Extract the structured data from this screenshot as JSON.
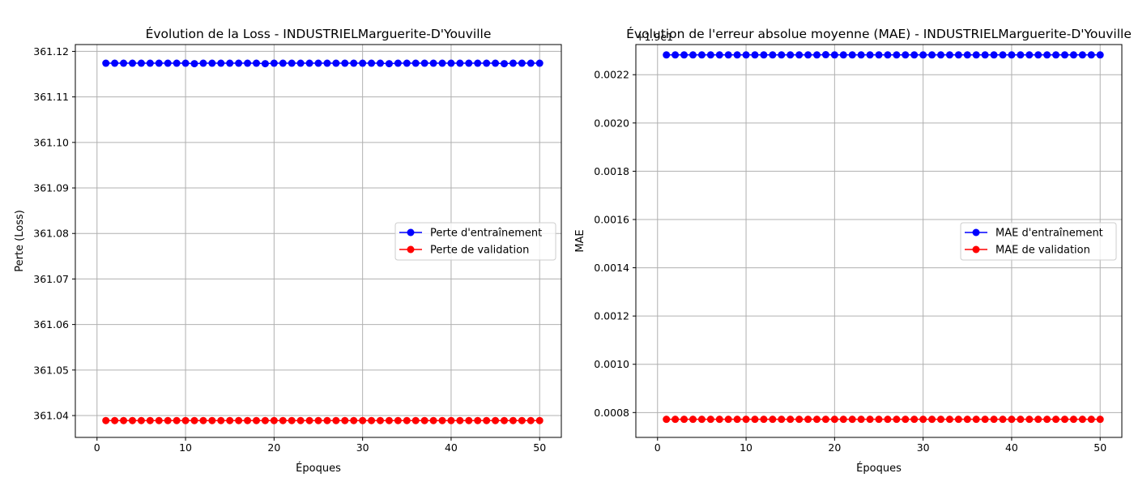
{
  "chart_data": [
    {
      "type": "line",
      "title": "Évolution de la Loss - INDUSTRIELMarguerite-D'Youville",
      "xlabel": "Époques",
      "ylabel": "Perte (Loss)",
      "xlim": [
        -2.45,
        52.45
      ],
      "ylim": [
        361.0352,
        361.1215
      ],
      "x_ticks": [
        0,
        10,
        20,
        30,
        40,
        50
      ],
      "x_tick_labels": [
        "0",
        "10",
        "20",
        "30",
        "40",
        "50"
      ],
      "y_ticks": [
        361.04,
        361.05,
        361.06,
        361.07,
        361.08,
        361.09,
        361.1,
        361.11,
        361.12
      ],
      "y_tick_labels": [
        "361.04",
        "361.05",
        "361.06",
        "361.07",
        "361.08",
        "361.09",
        "361.10",
        "361.11",
        "361.12"
      ],
      "offset_text": "",
      "grid": true,
      "legend_position": "center-right",
      "x": [
        1,
        2,
        3,
        4,
        5,
        6,
        7,
        8,
        9,
        10,
        11,
        12,
        13,
        14,
        15,
        16,
        17,
        18,
        19,
        20,
        21,
        22,
        23,
        24,
        25,
        26,
        27,
        28,
        29,
        30,
        31,
        32,
        33,
        34,
        35,
        36,
        37,
        38,
        39,
        40,
        41,
        42,
        43,
        44,
        45,
        46,
        47,
        48,
        49,
        50
      ],
      "series": [
        {
          "name": "Perte d'entraînement",
          "color": "#0000ff",
          "marker": "circle",
          "values": [
            361.1174,
            361.1174,
            361.1174,
            361.1174,
            361.1174,
            361.1174,
            361.1174,
            361.1174,
            361.1174,
            361.1174,
            361.1173,
            361.1174,
            361.1174,
            361.1174,
            361.1174,
            361.1174,
            361.1174,
            361.1174,
            361.1173,
            361.1174,
            361.1174,
            361.1174,
            361.1174,
            361.1174,
            361.1174,
            361.1174,
            361.1174,
            361.1174,
            361.1174,
            361.1174,
            361.1174,
            361.1174,
            361.1173,
            361.1174,
            361.1174,
            361.1174,
            361.1174,
            361.1174,
            361.1174,
            361.1174,
            361.1174,
            361.1174,
            361.1174,
            361.1174,
            361.1174,
            361.1173,
            361.1174,
            361.1174,
            361.1174,
            361.1174
          ]
        },
        {
          "name": "Perte de validation",
          "color": "#ff0000",
          "marker": "circle",
          "values": [
            361.0389,
            361.0389,
            361.0389,
            361.0389,
            361.0389,
            361.0389,
            361.0389,
            361.0389,
            361.0389,
            361.0389,
            361.0389,
            361.0389,
            361.0389,
            361.0389,
            361.0389,
            361.0389,
            361.0389,
            361.0389,
            361.0389,
            361.0389,
            361.0389,
            361.0389,
            361.0389,
            361.0389,
            361.0389,
            361.0389,
            361.0389,
            361.0389,
            361.0389,
            361.0389,
            361.0389,
            361.0389,
            361.0389,
            361.0389,
            361.0389,
            361.0389,
            361.0389,
            361.0389,
            361.0389,
            361.0389,
            361.0389,
            361.0389,
            361.0389,
            361.0389,
            361.0389,
            361.0389,
            361.0389,
            361.0389,
            361.0389,
            361.0389
          ]
        }
      ]
    },
    {
      "type": "line",
      "title": "Évolution de l'erreur absolue moyenne (MAE) - INDUSTRIELMarguerite-D'Youville",
      "xlabel": "Époques",
      "ylabel": "MAE",
      "xlim": [
        -2.45,
        52.45
      ],
      "ylim": [
        0.000697,
        0.002325
      ],
      "x_ticks": [
        0,
        10,
        20,
        30,
        40,
        50
      ],
      "x_tick_labels": [
        "0",
        "10",
        "20",
        "30",
        "40",
        "50"
      ],
      "y_ticks": [
        0.0008,
        0.001,
        0.0012,
        0.0014,
        0.0016,
        0.0018,
        0.002,
        0.0022
      ],
      "y_tick_labels": [
        "0.0008",
        "0.0010",
        "0.0012",
        "0.0014",
        "0.0016",
        "0.0018",
        "0.0020",
        "0.0022"
      ],
      "offset_text": "+1.9e1",
      "grid": true,
      "legend_position": "center-right",
      "x": [
        1,
        2,
        3,
        4,
        5,
        6,
        7,
        8,
        9,
        10,
        11,
        12,
        13,
        14,
        15,
        16,
        17,
        18,
        19,
        20,
        21,
        22,
        23,
        24,
        25,
        26,
        27,
        28,
        29,
        30,
        31,
        32,
        33,
        34,
        35,
        36,
        37,
        38,
        39,
        40,
        41,
        42,
        43,
        44,
        45,
        46,
        47,
        48,
        49,
        50
      ],
      "series": [
        {
          "name": "MAE d'entraînement",
          "color": "#0000ff",
          "marker": "circle",
          "values": [
            0.002282,
            0.002282,
            0.002282,
            0.002282,
            0.002282,
            0.002282,
            0.002282,
            0.002282,
            0.002282,
            0.002282,
            0.002282,
            0.002282,
            0.002282,
            0.002282,
            0.002282,
            0.002282,
            0.002282,
            0.002282,
            0.002283,
            0.002282,
            0.002282,
            0.002282,
            0.002282,
            0.002282,
            0.002282,
            0.002282,
            0.002282,
            0.002282,
            0.002282,
            0.002282,
            0.002282,
            0.002282,
            0.002282,
            0.002282,
            0.002282,
            0.002282,
            0.002282,
            0.002282,
            0.002282,
            0.002282,
            0.002282,
            0.002282,
            0.002282,
            0.002282,
            0.002282,
            0.002282,
            0.002282,
            0.002282,
            0.002282,
            0.002282
          ]
        },
        {
          "name": "MAE de validation",
          "color": "#ff0000",
          "marker": "circle",
          "values": [
            0.000772,
            0.000772,
            0.000772,
            0.000772,
            0.000772,
            0.000772,
            0.000772,
            0.000772,
            0.000772,
            0.000772,
            0.000772,
            0.000772,
            0.000772,
            0.000772,
            0.000772,
            0.000772,
            0.000772,
            0.000772,
            0.000772,
            0.000772,
            0.000772,
            0.000772,
            0.000772,
            0.000772,
            0.000772,
            0.000772,
            0.000772,
            0.000772,
            0.000772,
            0.000772,
            0.000772,
            0.000772,
            0.000772,
            0.000772,
            0.000772,
            0.000772,
            0.000772,
            0.000772,
            0.000772,
            0.000772,
            0.000772,
            0.000772,
            0.000772,
            0.000772,
            0.000772,
            0.000772,
            0.000772,
            0.000772,
            0.000772,
            0.000772
          ]
        }
      ]
    }
  ]
}
